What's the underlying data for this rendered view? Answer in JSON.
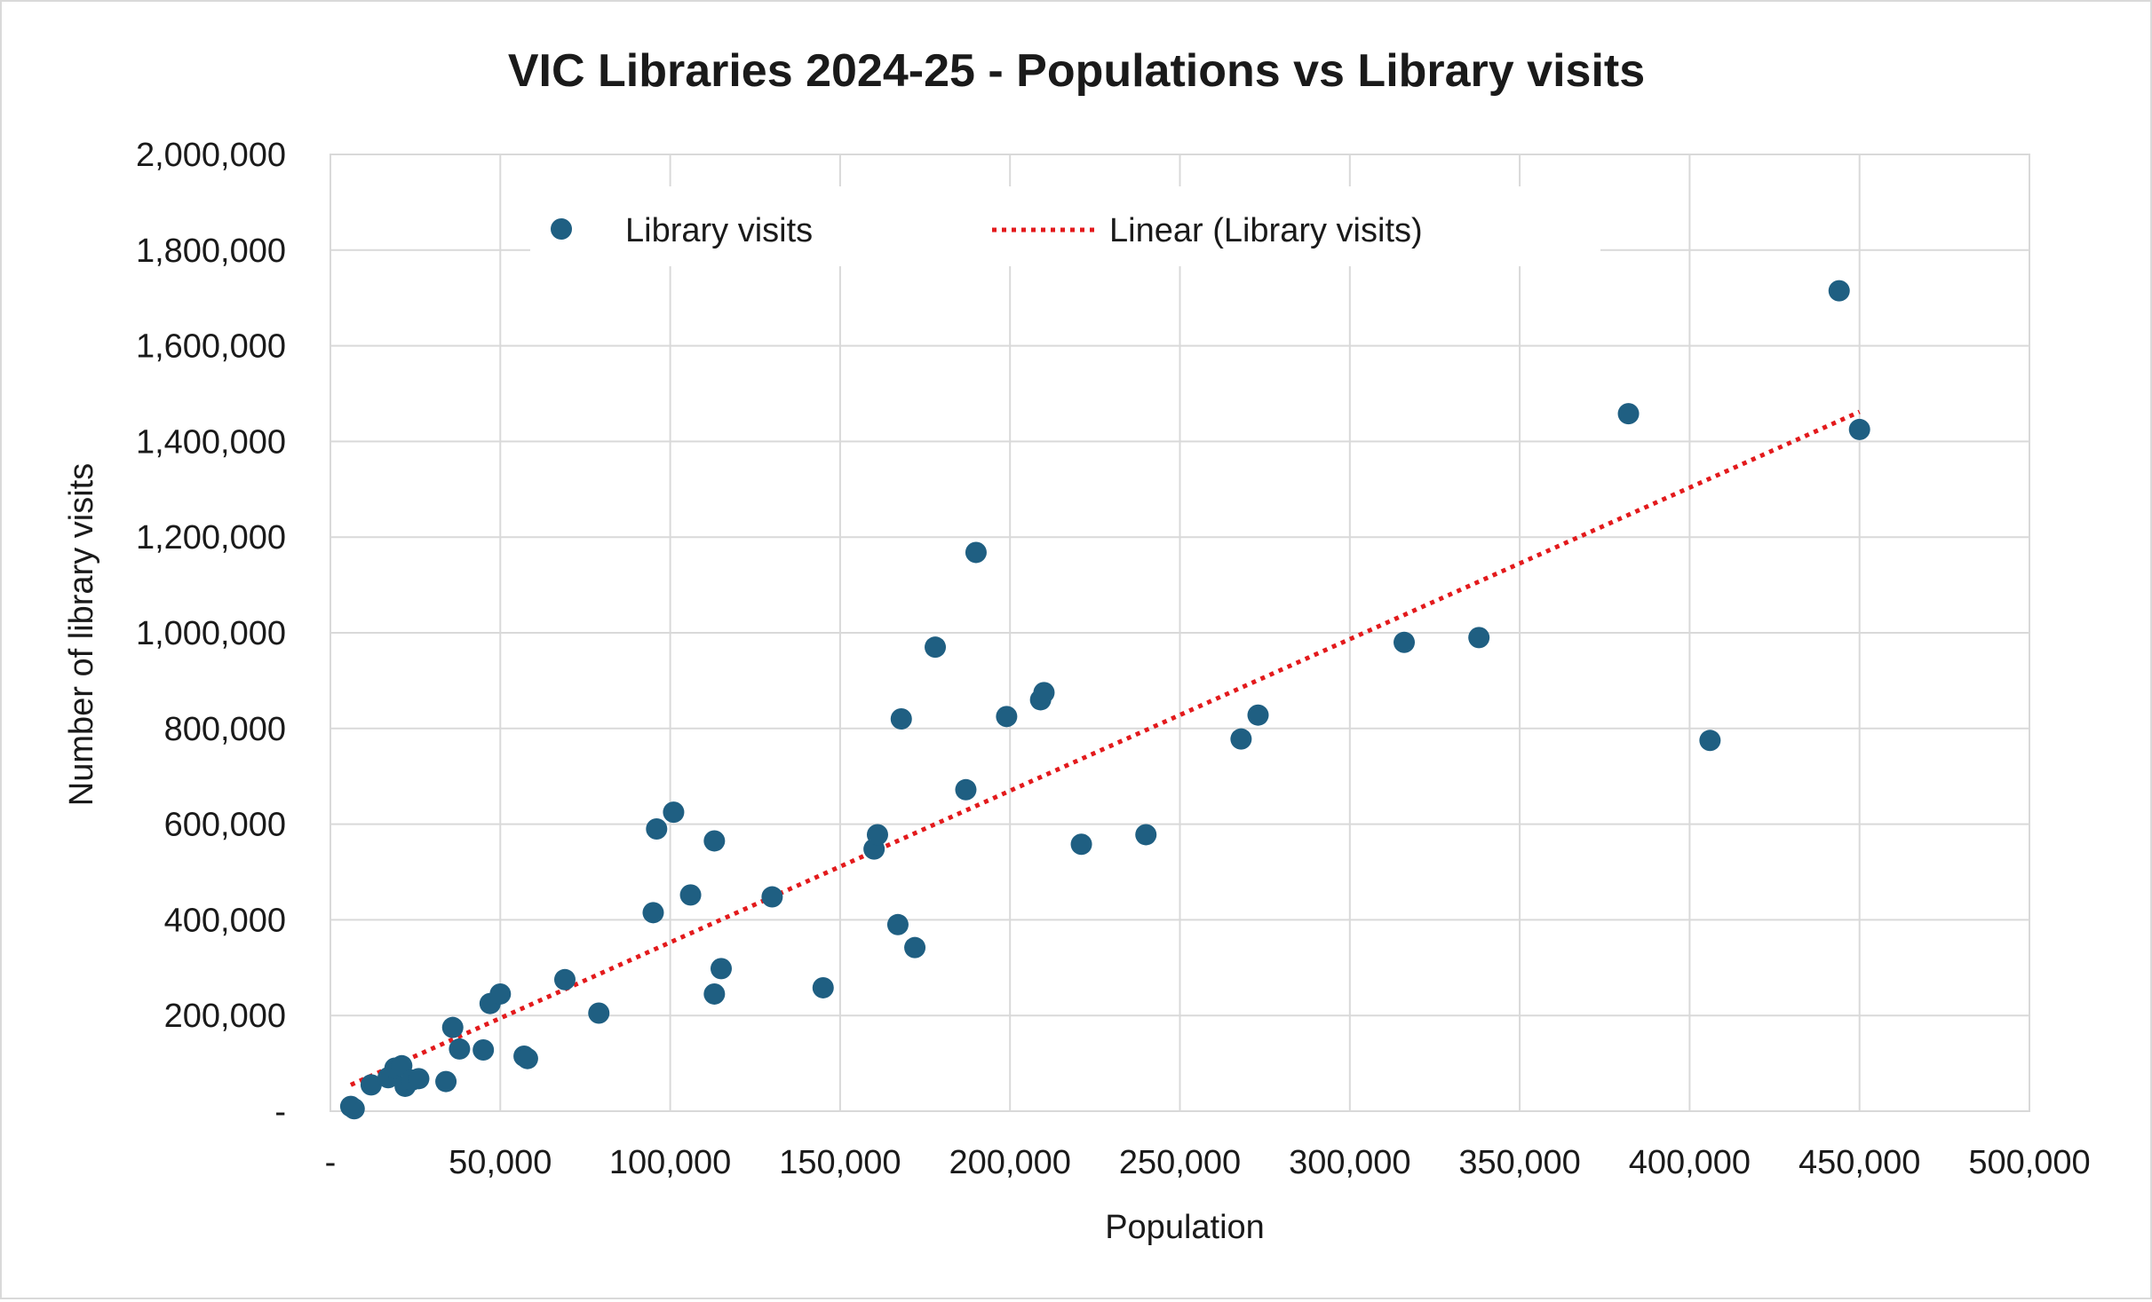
{
  "chart_data": {
    "type": "scatter",
    "title": "VIC Libraries 2024-25 - Populations vs Library visits",
    "xlabel": "Population",
    "ylabel": "Number of library visits",
    "xlim": [
      0,
      500000
    ],
    "ylim": [
      0,
      2000000
    ],
    "x_ticks": [
      0,
      50000,
      100000,
      150000,
      200000,
      250000,
      300000,
      350000,
      400000,
      450000,
      500000
    ],
    "x_tick_labels": [
      "-",
      "50,000",
      "100,000",
      "150,000",
      "200,000",
      "250,000",
      "300,000",
      "350,000",
      "400,000",
      "450,000",
      "500,000"
    ],
    "y_ticks": [
      0,
      200000,
      400000,
      600000,
      800000,
      1000000,
      1200000,
      1400000,
      1600000,
      1800000,
      2000000
    ],
    "y_tick_labels": [
      "-",
      "200,000",
      "400,000",
      "600,000",
      "800,000",
      "1,000,000",
      "1,200,000",
      "1,400,000",
      "1,600,000",
      "1,800,000",
      "2,000,000"
    ],
    "grid": true,
    "legend_position": "top-left",
    "series": [
      {
        "name": "Library visits",
        "color": "#1f5f82",
        "points": [
          [
            6000,
            10000
          ],
          [
            7000,
            5000
          ],
          [
            12000,
            55000
          ],
          [
            17000,
            70000
          ],
          [
            19000,
            90000
          ],
          [
            21000,
            95000
          ],
          [
            22000,
            52000
          ],
          [
            24000,
            65000
          ],
          [
            26000,
            68000
          ],
          [
            34000,
            62000
          ],
          [
            36000,
            175000
          ],
          [
            38000,
            130000
          ],
          [
            45000,
            128000
          ],
          [
            47000,
            225000
          ],
          [
            50000,
            245000
          ],
          [
            57000,
            115000
          ],
          [
            58000,
            110000
          ],
          [
            69000,
            275000
          ],
          [
            79000,
            205000
          ],
          [
            95000,
            415000
          ],
          [
            96000,
            590000
          ],
          [
            101000,
            625000
          ],
          [
            106000,
            452000
          ],
          [
            113000,
            565000
          ],
          [
            113000,
            245000
          ],
          [
            115000,
            298000
          ],
          [
            130000,
            448000
          ],
          [
            145000,
            258000
          ],
          [
            160000,
            548000
          ],
          [
            161000,
            578000
          ],
          [
            167000,
            390000
          ],
          [
            168000,
            820000
          ],
          [
            172000,
            342000
          ],
          [
            178000,
            970000
          ],
          [
            187000,
            672000
          ],
          [
            190000,
            1168000
          ],
          [
            199000,
            825000
          ],
          [
            209000,
            860000
          ],
          [
            210000,
            875000
          ],
          [
            221000,
            558000
          ],
          [
            240000,
            578000
          ],
          [
            268000,
            778000
          ],
          [
            273000,
            828000
          ],
          [
            316000,
            980000
          ],
          [
            338000,
            990000
          ],
          [
            382000,
            1458000
          ],
          [
            406000,
            775000
          ],
          [
            444000,
            1715000
          ],
          [
            450000,
            1425000
          ]
        ]
      }
    ],
    "trendline": {
      "name": "Linear (Library visits)",
      "type": "linear",
      "color": "#e31a1c",
      "x_range": [
        6000,
        450000
      ],
      "y_range": [
        55000,
        1462000
      ]
    }
  }
}
